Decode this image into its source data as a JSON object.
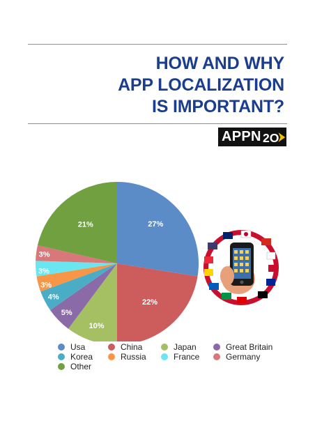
{
  "header": {
    "title_lines": [
      "HOW AND WHY",
      "APP LOCALIZATION",
      "IS IMPORTANT?"
    ],
    "logo_text": "APPN",
    "logo_suffix": "2O"
  },
  "colors": {
    "title": "#1a3e8c",
    "usa": "#5b8cc8",
    "china": "#cd5c5c",
    "japan": "#a4c063",
    "great_britain": "#8b6aa8",
    "korea": "#4bacc6",
    "russia": "#f79646",
    "france": "#69e6f0",
    "germany": "#d9787a",
    "other": "#70a040"
  },
  "chart_data": {
    "type": "pie",
    "title": "",
    "categories": [
      "Usa",
      "China",
      "Japan",
      "Great Britain",
      "Korea",
      "Russia",
      "France",
      "Germany",
      "Other"
    ],
    "values": [
      27,
      22,
      10,
      5,
      4,
      3,
      3,
      3,
      21
    ],
    "labels": [
      "27%",
      "22%",
      "10%",
      "5%",
      "4%",
      "3%",
      "3%",
      "3%",
      "21%"
    ],
    "legend_position": "bottom",
    "start_direction": "top, clockwise"
  },
  "image": {
    "icon": "phone-with-flags-icon"
  }
}
